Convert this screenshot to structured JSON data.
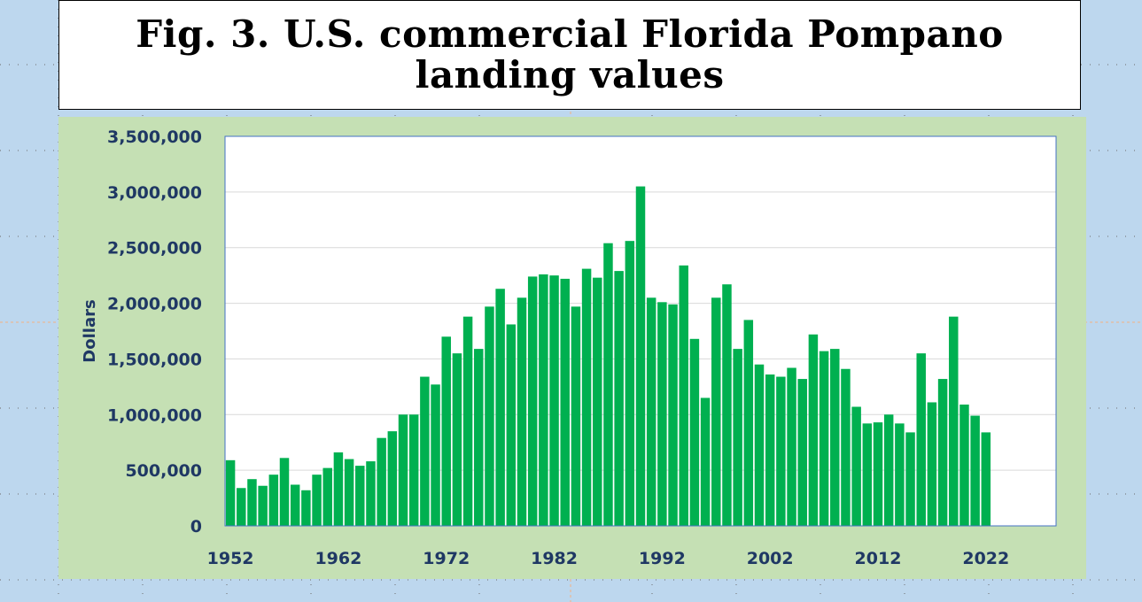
{
  "chart_data": {
    "type": "bar",
    "title": "Fig. 3. U.S. commercial Florida Pompano landing values",
    "xlabel": "",
    "ylabel": "Dollars",
    "ylim": [
      0,
      3500000
    ],
    "xlim": [
      1952,
      2029
    ],
    "x_ticks": [
      1952,
      1962,
      1972,
      1982,
      1992,
      2002,
      2012,
      2022
    ],
    "y_ticks": [
      0,
      500000,
      1000000,
      1500000,
      2000000,
      2500000,
      3000000,
      3500000
    ],
    "y_tick_labels": [
      "0",
      "500,000",
      "1,000,000",
      "1,500,000",
      "2,000,000",
      "2,500,000",
      "3,000,000",
      "3,500,000"
    ],
    "grid": true,
    "legend": "none",
    "bar_color": "#00b050",
    "x": [
      1952,
      1953,
      1954,
      1955,
      1956,
      1957,
      1958,
      1959,
      1960,
      1961,
      1962,
      1963,
      1964,
      1965,
      1966,
      1967,
      1968,
      1969,
      1970,
      1971,
      1972,
      1973,
      1974,
      1975,
      1976,
      1977,
      1978,
      1979,
      1980,
      1981,
      1982,
      1983,
      1984,
      1985,
      1986,
      1987,
      1988,
      1989,
      1990,
      1991,
      1992,
      1993,
      1994,
      1995,
      1996,
      1997,
      1998,
      1999,
      2000,
      2001,
      2002,
      2003,
      2004,
      2005,
      2006,
      2007,
      2008,
      2009,
      2010,
      2011,
      2012,
      2013,
      2014,
      2015,
      2016,
      2017,
      2018,
      2019,
      2020,
      2021,
      2022
    ],
    "values": [
      590000,
      340000,
      420000,
      360000,
      460000,
      610000,
      370000,
      320000,
      460000,
      520000,
      660000,
      600000,
      540000,
      580000,
      790000,
      850000,
      1000000,
      1000000,
      1340000,
      1270000,
      1700000,
      1550000,
      1880000,
      1590000,
      1970000,
      2130000,
      1810000,
      2050000,
      2240000,
      2260000,
      2250000,
      2220000,
      1970000,
      2310000,
      2230000,
      2540000,
      2290000,
      2560000,
      3050000,
      2050000,
      2010000,
      1990000,
      2340000,
      1680000,
      1150000,
      2050000,
      2170000,
      1590000,
      1850000,
      1450000,
      1360000,
      1340000,
      1420000,
      1320000,
      1720000,
      1570000,
      1590000,
      1410000,
      1070000,
      920000,
      930000,
      1000000,
      920000,
      840000,
      1550000,
      1110000,
      1320000,
      1880000,
      1090000,
      990000,
      840000
    ]
  }
}
